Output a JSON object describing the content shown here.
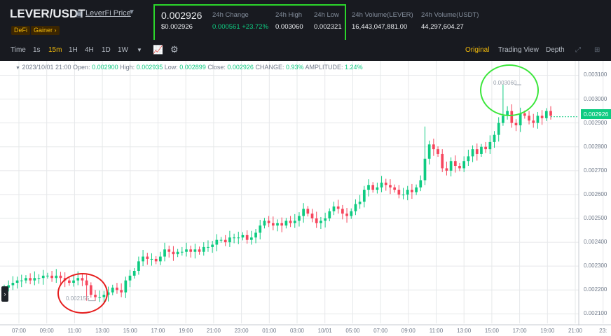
{
  "header": {
    "pair": "LEVER/USDT",
    "project_link": "LeverFi Price",
    "tags": [
      "DeFi",
      "Gainer ›"
    ],
    "last_price": "0.002926",
    "last_price_usd": "$0.002926",
    "stats": [
      {
        "label": "24h Change",
        "value": "0.000561 +23.72%",
        "color": "#0ecb81"
      },
      {
        "label": "24h High",
        "value": "0.003060",
        "color": "#eaecef"
      },
      {
        "label": "24h Low",
        "value": "0.002321",
        "color": "#eaecef"
      },
      {
        "label": "24h Volume(LEVER)",
        "value": "16,443,047,881.00",
        "color": "#eaecef"
      },
      {
        "label": "24h Volume(USDT)",
        "value": "44,297,604.27",
        "color": "#eaecef"
      }
    ]
  },
  "toolbar": {
    "intervals": [
      "Time",
      "1s",
      "15m",
      "1H",
      "4H",
      "1D",
      "1W"
    ],
    "active_interval": "15m",
    "views": [
      "Original",
      "Trading View",
      "Depth"
    ],
    "active_view": "Original",
    "icons": [
      "dropdown-icon",
      "indicator-icon",
      "settings-icon",
      "expand-icon",
      "grid-layout-icon"
    ]
  },
  "ohlc": {
    "date": "2023/10/01 21:00",
    "open_label": "Open:",
    "open": "0.002900",
    "high_label": "High:",
    "high": "0.002935",
    "low_label": "Low:",
    "low": "0.002899",
    "close_label": "Close:",
    "close": "0.002926",
    "change_label": "CHANGE:",
    "change": "0.93%",
    "amp_label": "AMPLITUDE:",
    "amplitude": "1.24%"
  },
  "chart_data": {
    "type": "candlestick",
    "y_ticks": [
      "0.003100",
      "0.003000",
      "0.002900",
      "0.002800",
      "0.002700",
      "0.002600",
      "0.002500",
      "0.002400",
      "0.002300",
      "0.002200",
      "0.002100"
    ],
    "y_range": [
      0.00206,
      0.00316
    ],
    "x_ticks": [
      "07:00",
      "09:00",
      "11:00",
      "13:00",
      "15:00",
      "17:00",
      "19:00",
      "21:00",
      "23:00",
      "01:00",
      "03:00",
      "10/01",
      "05:00",
      "07:00",
      "09:00",
      "11:00",
      "13:00",
      "15:00",
      "17:00",
      "19:00",
      "21:00",
      "23:"
    ],
    "current_price": "0.002926",
    "max_marker": "0.003060",
    "min_marker": "0.002155",
    "closes": [
      0.00221,
      0.00222,
      0.00223,
      0.00224,
      0.00224,
      0.00225,
      0.00224,
      0.00225,
      0.00225,
      0.00226,
      0.00226,
      0.00225,
      0.00226,
      0.00225,
      0.00224,
      0.00223,
      0.00224,
      0.00225,
      0.00224,
      0.00222,
      0.00218,
      0.00217,
      0.00217,
      0.00218,
      0.00219,
      0.00221,
      0.0022,
      0.00219,
      0.00224,
      0.00226,
      0.00228,
      0.00232,
      0.00234,
      0.00233,
      0.00233,
      0.00232,
      0.00234,
      0.00237,
      0.00236,
      0.00235,
      0.00236,
      0.00236,
      0.00237,
      0.00236,
      0.00237,
      0.00236,
      0.00238,
      0.00238,
      0.00239,
      0.00241,
      0.00241,
      0.0024,
      0.00242,
      0.00242,
      0.00242,
      0.00243,
      0.00241,
      0.00242,
      0.00244,
      0.00247,
      0.00249,
      0.00248,
      0.00247,
      0.00248,
      0.00247,
      0.00249,
      0.00248,
      0.00249,
      0.00251,
      0.00254,
      0.00252,
      0.0025,
      0.00248,
      0.00249,
      0.0025,
      0.00253,
      0.00255,
      0.00254,
      0.00252,
      0.00251,
      0.00253,
      0.00256,
      0.00257,
      0.00262,
      0.00264,
      0.00262,
      0.00263,
      0.00265,
      0.00264,
      0.00263,
      0.00262,
      0.0026,
      0.0026,
      0.00262,
      0.00261,
      0.00263,
      0.00266,
      0.00275,
      0.00281,
      0.00279,
      0.00277,
      0.00271,
      0.0027,
      0.00274,
      0.00272,
      0.00271,
      0.00274,
      0.00276,
      0.00279,
      0.00277,
      0.0028,
      0.00279,
      0.00282,
      0.00285,
      0.0029,
      0.00293,
      0.00295,
      0.0029,
      0.00289,
      0.00294,
      0.00293,
      0.00291,
      0.0029,
      0.00293,
      0.00292,
      0.00295,
      0.00293
    ]
  }
}
